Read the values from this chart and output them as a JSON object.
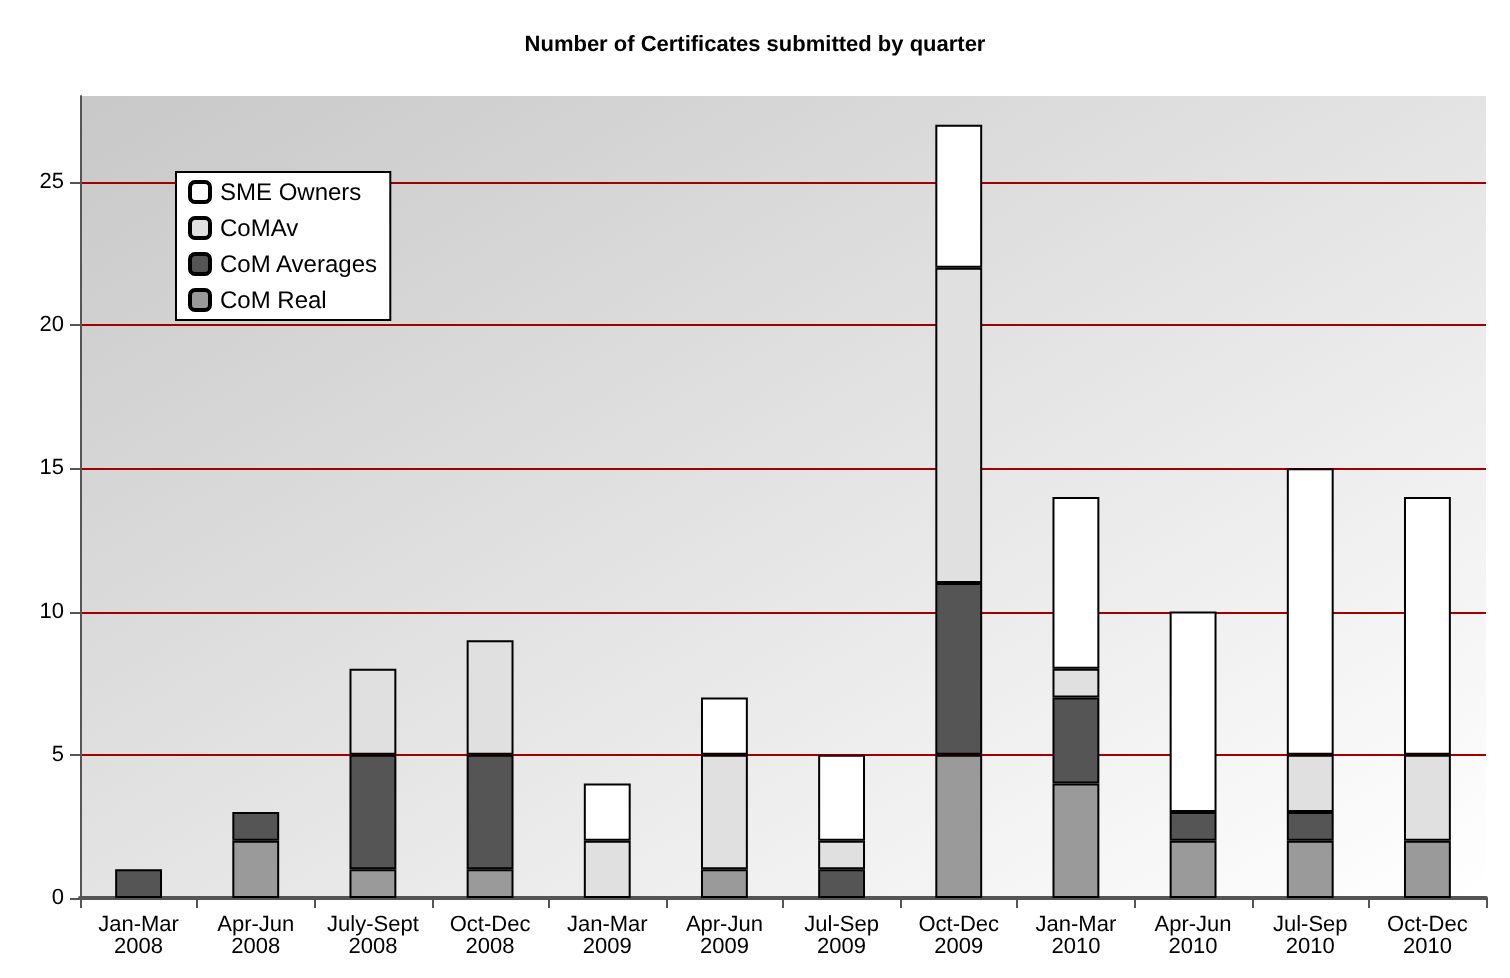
{
  "chart_data": {
    "type": "bar",
    "title": "Number of Certificates submitted by quarter",
    "categories": [
      "Jan-Mar\n2008",
      "Apr-Jun\n2008",
      "July-Sept\n2008",
      "Oct-Dec\n2008",
      "Jan-Mar\n2009",
      "Apr-Jun\n2009",
      "Jul-Sep\n2009",
      "Oct-Dec\n2009",
      "Jan-Mar\n2010",
      "Apr-Jun\n2010",
      "Jul-Sep\n2010",
      "Oct-Dec\n2010"
    ],
    "series": [
      {
        "name": "CoM Real",
        "color": "#9a9a9a",
        "values": [
          0,
          2,
          1,
          1,
          0,
          1,
          0,
          5,
          4,
          2,
          2,
          2
        ]
      },
      {
        "name": "CoM Averages",
        "color": "#555555",
        "values": [
          1,
          1,
          4,
          4,
          0,
          0,
          1,
          6,
          3,
          1,
          1,
          0
        ]
      },
      {
        "name": "CoMAv",
        "color": "#e0e0e0",
        "values": [
          0,
          0,
          3,
          4,
          2,
          4,
          1,
          11,
          1,
          0,
          2,
          3
        ]
      },
      {
        "name": "SME Owners",
        "color": "#ffffff",
        "values": [
          0,
          0,
          0,
          0,
          2,
          2,
          3,
          5,
          6,
          7,
          10,
          9
        ]
      }
    ],
    "stacked": true,
    "ylim": [
      0,
      28
    ],
    "yticks": [
      0,
      5,
      10,
      15,
      20,
      25
    ],
    "grid": "y",
    "legend": "top left"
  }
}
